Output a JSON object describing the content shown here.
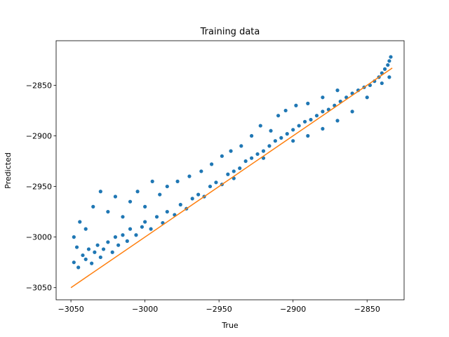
{
  "chart_data": {
    "type": "scatter",
    "title": "Training data",
    "x_label": "True",
    "y_label": "Predicted",
    "xlim": [
      -3060,
      -2825
    ],
    "ylim": [
      -3062,
      -2806
    ],
    "xticks": [
      {
        "value": -3050,
        "label": "−3050"
      },
      {
        "value": -3000,
        "label": "−3000"
      },
      {
        "value": -2950,
        "label": "−2950"
      },
      {
        "value": -2900,
        "label": "−2900"
      },
      {
        "value": -2850,
        "label": "−2850"
      }
    ],
    "yticks": [
      {
        "value": -3050,
        "label": "−3050"
      },
      {
        "value": -3000,
        "label": "−3000"
      },
      {
        "value": -2950,
        "label": "−2950"
      },
      {
        "value": -2900,
        "label": "−2900"
      },
      {
        "value": -2850,
        "label": "−2850"
      }
    ],
    "series": [
      {
        "type": "scatter",
        "color": "#1f77b4",
        "x": [
          -3048,
          -3046,
          -3045,
          -3042,
          -3040,
          -3038,
          -3036,
          -3034,
          -3032,
          -3030,
          -3028,
          -3025,
          -3022,
          -3020,
          -3018,
          -3015,
          -3012,
          -3010,
          -3006,
          -3002,
          -3000,
          -2996,
          -2992,
          -2988,
          -2985,
          -2980,
          -2976,
          -2972,
          -2968,
          -2964,
          -2960,
          -2956,
          -2952,
          -2948,
          -2944,
          -2940,
          -2936,
          -2932,
          -2928,
          -2924,
          -2920,
          -2916,
          -2912,
          -2908,
          -2904,
          -2900,
          -2896,
          -2892,
          -2888,
          -2884,
          -2880,
          -2876,
          -2872,
          -2868,
          -2864,
          -2860,
          -2856,
          -2852,
          -2848,
          -2845,
          -2842,
          -2840,
          -2838,
          -2836,
          -2835,
          -2834,
          -2900,
          -2890,
          -2880,
          -2870,
          -2860,
          -2850,
          -2840,
          -2835,
          -2920,
          -2940,
          -3048,
          -3044,
          -3040,
          -3035,
          -3030,
          -3025,
          -3020,
          -3015,
          -3010,
          -3005,
          -3000,
          -2995,
          -2990,
          -2985,
          -2978,
          -2970,
          -2962,
          -2955,
          -2948,
          -2942,
          -2935,
          -2928,
          -2922,
          -2915,
          -2910,
          -2905,
          -2898,
          -2890,
          -2880,
          -2870
        ],
        "values": [
          -3025,
          -3010,
          -3030,
          -3018,
          -3022,
          -3012,
          -3026,
          -3015,
          -3008,
          -3020,
          -3012,
          -3005,
          -3015,
          -3000,
          -3008,
          -2998,
          -3004,
          -2992,
          -2998,
          -2990,
          -2985,
          -2992,
          -2980,
          -2986,
          -2975,
          -2978,
          -2968,
          -2972,
          -2962,
          -2958,
          -2960,
          -2950,
          -2946,
          -2948,
          -2938,
          -2935,
          -2932,
          -2925,
          -2922,
          -2918,
          -2915,
          -2910,
          -2905,
          -2902,
          -2898,
          -2894,
          -2890,
          -2886,
          -2884,
          -2880,
          -2876,
          -2874,
          -2870,
          -2866,
          -2862,
          -2858,
          -2855,
          -2852,
          -2850,
          -2846,
          -2842,
          -2838,
          -2834,
          -2830,
          -2826,
          -2822,
          -2905,
          -2900,
          -2893,
          -2885,
          -2876,
          -2862,
          -2848,
          -2842,
          -2922,
          -2942,
          -3000,
          -2985,
          -2992,
          -2970,
          -2955,
          -2975,
          -2960,
          -2980,
          -2965,
          -2955,
          -2970,
          -2945,
          -2958,
          -2950,
          -2945,
          -2940,
          -2935,
          -2928,
          -2920,
          -2915,
          -2910,
          -2900,
          -2890,
          -2895,
          -2880,
          -2875,
          -2870,
          -2868,
          -2862,
          -2855
        ]
      },
      {
        "type": "line",
        "color": "#ff7f0e",
        "x": [
          -3050,
          -2833
        ],
        "values": [
          -3050,
          -2833
        ]
      }
    ]
  }
}
